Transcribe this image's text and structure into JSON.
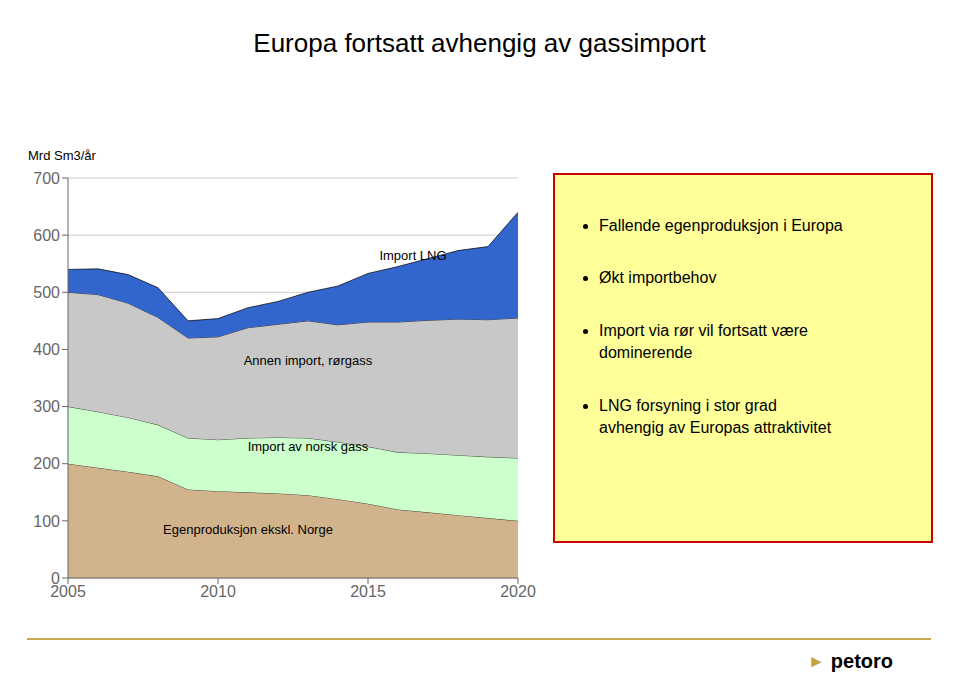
{
  "chart_data": {
    "type": "area",
    "title": "Europa fortsatt avhengig av gassimport",
    "y_label": "Mrd Sm3/år",
    "x": [
      2005,
      2006,
      2007,
      2008,
      2009,
      2010,
      2011,
      2012,
      2013,
      2014,
      2015,
      2016,
      2017,
      2018,
      2019,
      2020
    ],
    "series": [
      {
        "name": "Egenproduksjon ekskl. Norge",
        "color": "#D2B48C",
        "values": [
          200,
          193,
          186,
          178,
          155,
          152,
          150,
          148,
          145,
          138,
          130,
          120,
          115,
          110,
          105,
          100
        ]
      },
      {
        "name": "Import av norsk gass",
        "color": "#CCFFCC",
        "values": [
          100,
          98,
          95,
          90,
          90,
          90,
          95,
          98,
          100,
          100,
          100,
          100,
          103,
          105,
          107,
          110
        ]
      },
      {
        "name": "Annen import, rørgass",
        "color": "#C8C8C8",
        "values": [
          200,
          205,
          200,
          188,
          175,
          180,
          193,
          198,
          205,
          205,
          218,
          228,
          233,
          238,
          240,
          245
        ]
      },
      {
        "name": "Import LNG",
        "color": "#3366CC",
        "values": [
          40,
          45,
          50,
          52,
          30,
          32,
          35,
          40,
          50,
          68,
          85,
          97,
          108,
          120,
          128,
          185
        ]
      }
    ],
    "stacked": true,
    "xlim": [
      2005,
      2020
    ],
    "ylim": [
      0,
      700
    ],
    "xticks": [
      2005,
      2010,
      2015,
      2020
    ],
    "yticks": [
      0,
      100,
      200,
      300,
      400,
      500,
      600,
      700
    ],
    "grid": true,
    "annotations": [
      "Fallende egenproduksjon i Europa",
      "Økt importbehov",
      "Import via rør vil fortsatt være\ndominerende",
      "LNG forsyning i stor grad\navhengig av Europas attraktivitet",
      "►",
      "petoro"
    ]
  }
}
